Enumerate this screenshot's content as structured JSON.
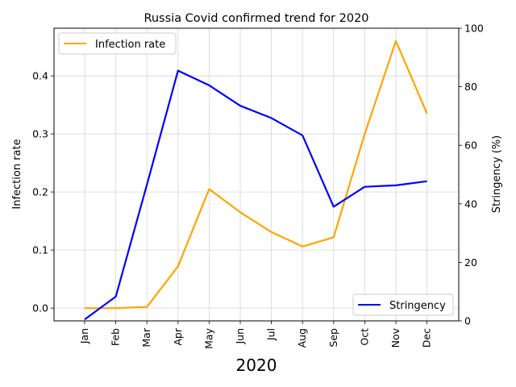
{
  "chart_data": {
    "type": "line",
    "title": "Russia Covid confirmed trend for 2020",
    "xlabel": "2020",
    "ylabel_left": "Infection rate",
    "ylabel_right": "Stringency (%)",
    "categories": [
      "Jan",
      "Feb",
      "Mar",
      "Apr",
      "May",
      "Jun",
      "Jul",
      "Aug",
      "Sep",
      "Oct",
      "Nov",
      "Dec"
    ],
    "y_left_range": [
      -0.022,
      0.482
    ],
    "y_left_ticks": [
      0.0,
      0.1,
      0.2,
      0.3,
      0.4
    ],
    "y_left_tick_labels": [
      "0.0",
      "0.1",
      "0.2",
      "0.3",
      "0.4"
    ],
    "y_right_range": [
      0,
      100
    ],
    "y_right_ticks": [
      0,
      20,
      40,
      60,
      80,
      100
    ],
    "y_right_tick_labels": [
      "0",
      "20",
      "40",
      "60",
      "80",
      "100"
    ],
    "grid": true,
    "series": [
      {
        "name": "Infection rate",
        "axis": "left",
        "color": "#ffa500",
        "values": [
          0.0,
          0.0,
          0.002,
          0.072,
          0.205,
          0.165,
          0.131,
          0.106,
          0.122,
          0.3,
          0.46,
          0.335
        ]
      },
      {
        "name": "Stringency",
        "axis": "right",
        "color": "#0000ff",
        "values": [
          0.5,
          8.3,
          46.5,
          85.5,
          80.5,
          73.5,
          69.3,
          63.4,
          39.0,
          45.8,
          46.3,
          47.7
        ]
      }
    ],
    "legends": [
      {
        "series": "Infection rate",
        "placement": "top-left"
      },
      {
        "series": "Stringency",
        "placement": "bottom-right"
      }
    ]
  }
}
